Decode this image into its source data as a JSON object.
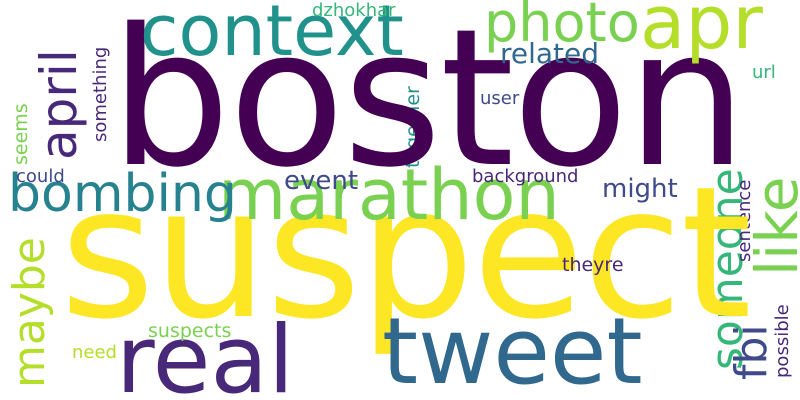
{
  "words": [
    {
      "key": "boston",
      "text": "boston",
      "color": "#440154",
      "orientation": "horizontal"
    },
    {
      "key": "suspect",
      "text": "suspect",
      "color": "#fde725",
      "orientation": "horizontal"
    },
    {
      "key": "context",
      "text": "context",
      "color": "#21918c",
      "orientation": "horizontal"
    },
    {
      "key": "marathon",
      "text": "marathon",
      "color": "#7ad151",
      "orientation": "horizontal"
    },
    {
      "key": "tweet",
      "text": "tweet",
      "color": "#31688e",
      "orientation": "horizontal"
    },
    {
      "key": "real",
      "text": "real",
      "color": "#482878",
      "orientation": "horizontal"
    },
    {
      "key": "apr",
      "text": "apr",
      "color": "#b5de2b",
      "orientation": "horizontal"
    },
    {
      "key": "photo",
      "text": "photo",
      "color": "#7ad151",
      "orientation": "horizontal"
    },
    {
      "key": "bombing",
      "text": "bombing",
      "color": "#26828e",
      "orientation": "horizontal"
    },
    {
      "key": "april",
      "text": "april",
      "color": "#482878",
      "orientation": "vertical"
    },
    {
      "key": "like",
      "text": "like",
      "color": "#7ad151",
      "orientation": "vertical"
    },
    {
      "key": "someone",
      "text": "someone",
      "color": "#35b779",
      "orientation": "vertical"
    },
    {
      "key": "fbi",
      "text": "fbi",
      "color": "#3e4a89",
      "orientation": "vertical"
    },
    {
      "key": "maybe",
      "text": "maybe",
      "color": "#b5de2b",
      "orientation": "vertical"
    },
    {
      "key": "related",
      "text": "related",
      "color": "#31688e",
      "orientation": "horizontal"
    },
    {
      "key": "event",
      "text": "event",
      "color": "#3e4a89",
      "orientation": "horizontal"
    },
    {
      "key": "might",
      "text": "might",
      "color": "#3e4a89",
      "orientation": "horizontal"
    },
    {
      "key": "dzhokhar",
      "text": "dzhokhar",
      "color": "#35b779",
      "orientation": "horizontal"
    },
    {
      "key": "background",
      "text": "background",
      "color": "#482878",
      "orientation": "horizontal"
    },
    {
      "key": "user",
      "text": "user",
      "color": "#3e4a89",
      "orientation": "horizontal"
    },
    {
      "key": "url",
      "text": "url",
      "color": "#35b779",
      "orientation": "horizontal"
    },
    {
      "key": "theyre",
      "text": "theyre",
      "color": "#482878",
      "orientation": "horizontal"
    },
    {
      "key": "suspects",
      "text": "suspects",
      "color": "#7ad151",
      "orientation": "horizontal"
    },
    {
      "key": "need",
      "text": "need",
      "color": "#b5de2b",
      "orientation": "horizontal"
    },
    {
      "key": "could",
      "text": "could",
      "color": "#3e4a89",
      "orientation": "horizontal"
    },
    {
      "key": "something",
      "text": "something",
      "color": "#482878",
      "orientation": "vertical"
    },
    {
      "key": "together",
      "text": "together",
      "color": "#21918c",
      "orientation": "vertical"
    },
    {
      "key": "seems",
      "text": "seems",
      "color": "#7ad151",
      "orientation": "vertical"
    },
    {
      "key": "sentence",
      "text": "sentence",
      "color": "#482878",
      "orientation": "vertical"
    },
    {
      "key": "possible",
      "text": "possible",
      "color": "#482878",
      "orientation": "vertical"
    }
  ]
}
